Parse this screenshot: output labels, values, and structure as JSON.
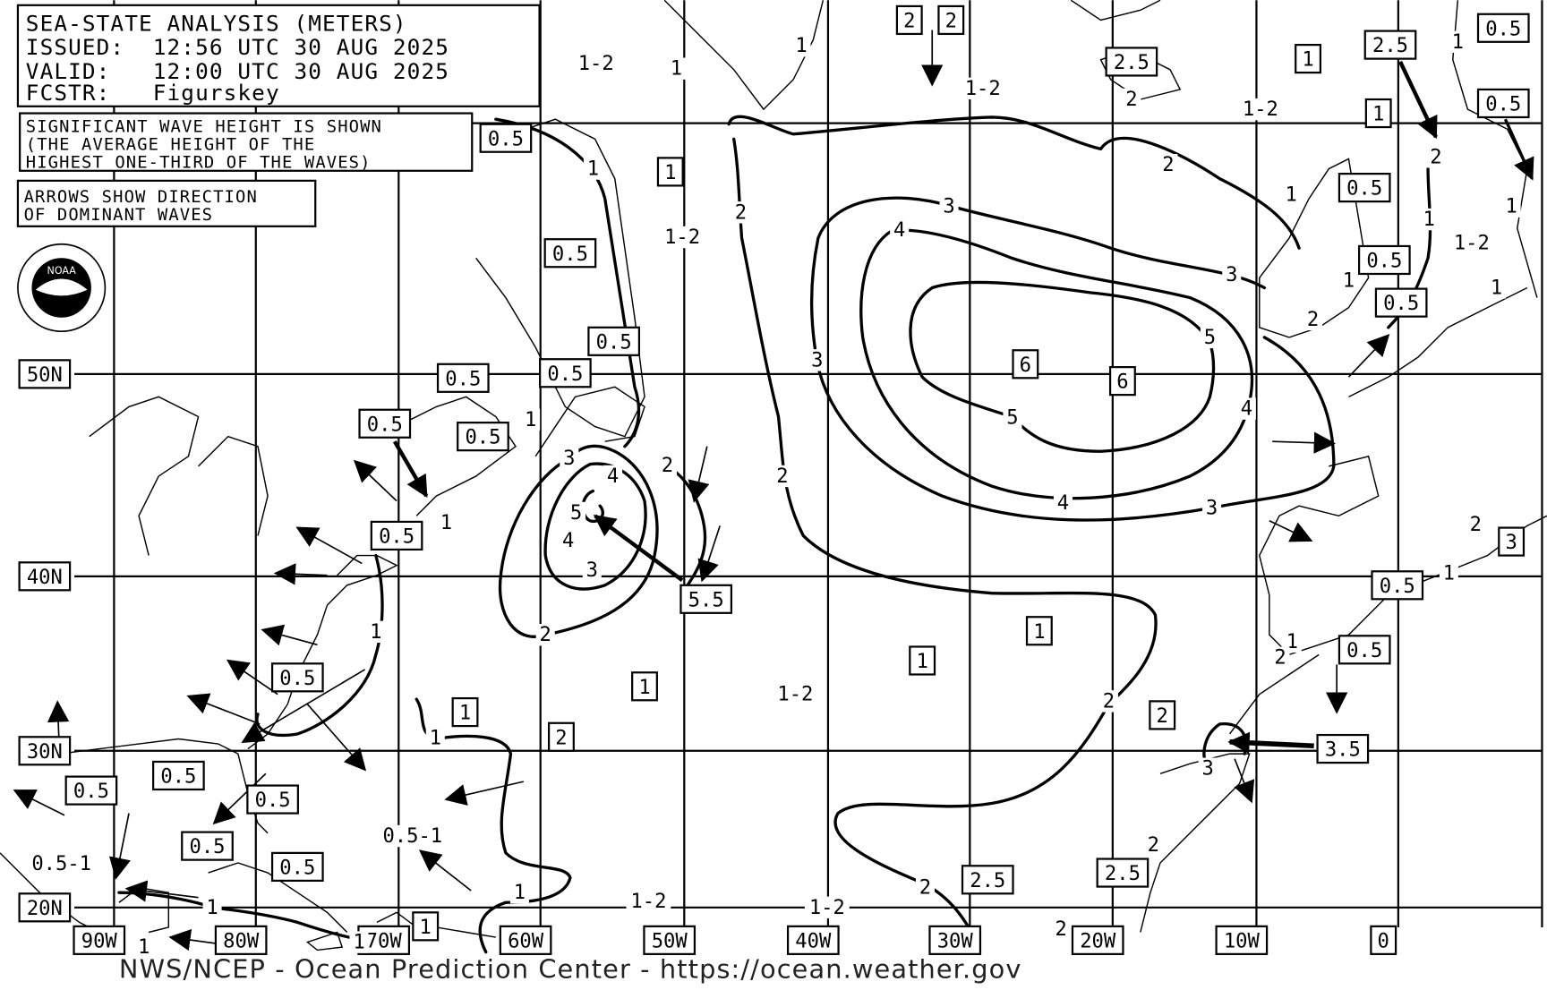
{
  "header": {
    "title": "SEA-STATE ANALYSIS (METERS)",
    "issued": "ISSUED:  12:56 UTC 30 AUG 2025",
    "valid": "VALID:   12:00 UTC 30 AUG 2025",
    "forecaster": "FCSTR:   Figurskey"
  },
  "notes": {
    "significant_wave": [
      "SIGNIFICANT WAVE HEIGHT IS SHOWN",
      "(THE AVERAGE HEIGHT OF THE",
      "HIGHEST ONE-THIRD OF THE WAVES)"
    ],
    "arrows": [
      "ARROWS SHOW DIRECTION",
      "OF DOMINANT WAVES"
    ]
  },
  "logo": {
    "text": "NOAA"
  },
  "latitude_labels": [
    "50N",
    "40N",
    "30N",
    "20N"
  ],
  "longitude_labels": [
    "90W",
    "80W",
    "70W",
    "60W",
    "50W",
    "40W",
    "30W",
    "20W",
    "10W",
    "0"
  ],
  "boxed_wave_heights": [
    "0.5",
    "1",
    "0.5",
    "0.5",
    "0.5",
    "0.5",
    "0.5",
    "0.5",
    "0.5",
    "5.5",
    "6",
    "6",
    "1",
    "1",
    "1",
    "1",
    "2",
    "2",
    "3.5",
    "0.5",
    "0.5",
    "0.5",
    "0.5",
    "0.5",
    "0.5",
    "1",
    "2.5",
    "2.5",
    "2",
    "2",
    "2.5",
    "1",
    "2.5",
    "1",
    "0.5",
    "0.5",
    "0.5",
    "0.5",
    "0.5",
    "3",
    "0.5",
    "0.5"
  ],
  "contour_labels": [
    "1-2",
    "1",
    "1",
    "1-2",
    "1-2",
    "1",
    "2",
    "1-2",
    "3",
    "4",
    "2",
    "3",
    "5",
    "3",
    "5",
    "4",
    "2",
    "4",
    "3",
    "1",
    "3",
    "4",
    "5",
    "4",
    "3",
    "2",
    "1",
    "2",
    "1",
    "1-2",
    "2",
    "3",
    "2",
    "2",
    "2",
    "1-2",
    "1-2",
    "1",
    "0.5-1",
    "1",
    "0.5-1",
    "1",
    "1",
    "1",
    "1",
    "1",
    "1-2",
    "1",
    "1",
    "2",
    "1",
    "2",
    "1",
    "2",
    "1",
    "2",
    "1",
    "2"
  ],
  "footer": "NWS/NCEP - Ocean Prediction Center - https://ocean.weather.gov"
}
